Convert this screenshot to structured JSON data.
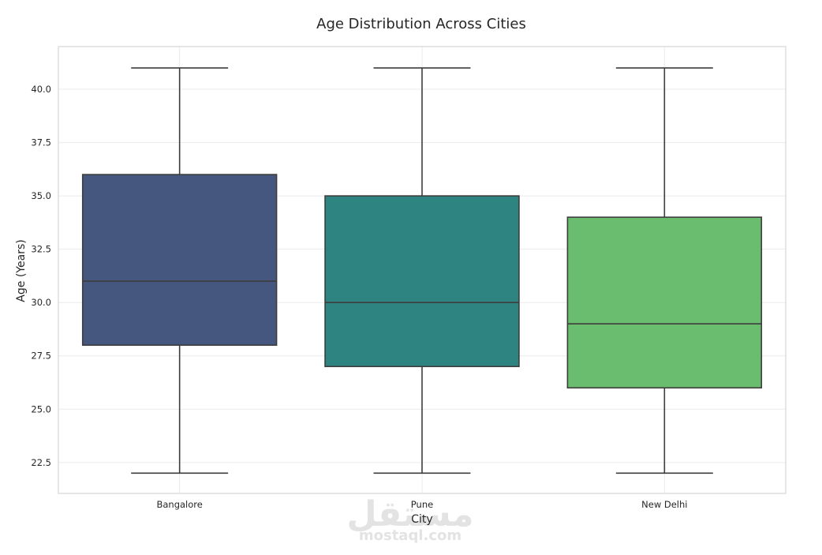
{
  "chart_data": {
    "type": "box",
    "title": "Age Distribution Across Cities",
    "xlabel": "City",
    "ylabel": "Age (Years)",
    "categories": [
      "Bangalore",
      "Pune",
      "New Delhi"
    ],
    "boxes": [
      {
        "category": "Bangalore",
        "whislo": 22,
        "q1": 28,
        "median": 31,
        "q3": 36,
        "whishi": 41,
        "color": "#46577f"
      },
      {
        "category": "Pune",
        "whislo": 22,
        "q1": 27,
        "median": 30,
        "q3": 35,
        "whishi": 41,
        "color": "#2e8480"
      },
      {
        "category": "New Delhi",
        "whislo": 22,
        "q1": 26,
        "median": 29,
        "q3": 34,
        "whishi": 41,
        "color": "#6abc6e"
      }
    ],
    "yticks": [
      "22.5",
      "25.0",
      "27.5",
      "30.0",
      "32.5",
      "35.0",
      "37.5",
      "40.0"
    ],
    "ylim": [
      21.05,
      42.0
    ],
    "grid": true,
    "legend": "none"
  },
  "watermark": {
    "arabic": "مستقل",
    "latin": "mostaql.com"
  }
}
